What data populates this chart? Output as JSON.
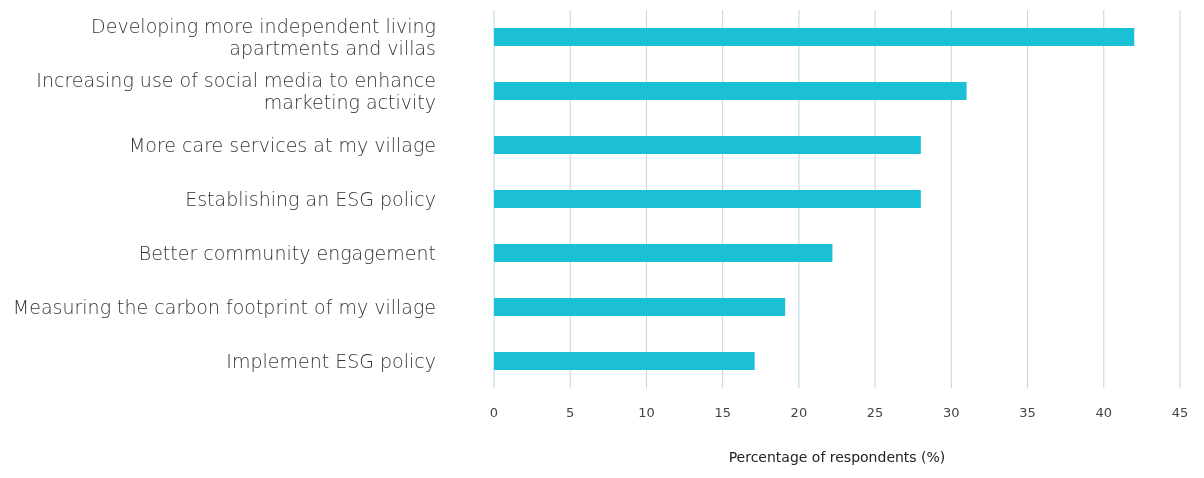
{
  "chart_data": {
    "type": "bar",
    "orientation": "horizontal",
    "xlabel": "Percentage of respondents (%)",
    "categories": [
      "Developing more independent living apartments and villas",
      "Increasing use of social media to enhance marketing activity",
      "More care services at my village",
      "Establishing an ESG policy",
      "Better community engagement",
      "Measuring the carbon footprint of my village",
      "Implement ESG policy"
    ],
    "values": [
      42,
      31,
      28,
      28,
      22.2,
      19.1,
      17.1
    ],
    "color": "#1bbfd6",
    "xlim": [
      0,
      45
    ],
    "xticks": [
      0,
      5,
      10,
      15,
      20,
      25,
      30,
      35,
      40,
      45
    ],
    "grid": "x",
    "legend": false
  }
}
